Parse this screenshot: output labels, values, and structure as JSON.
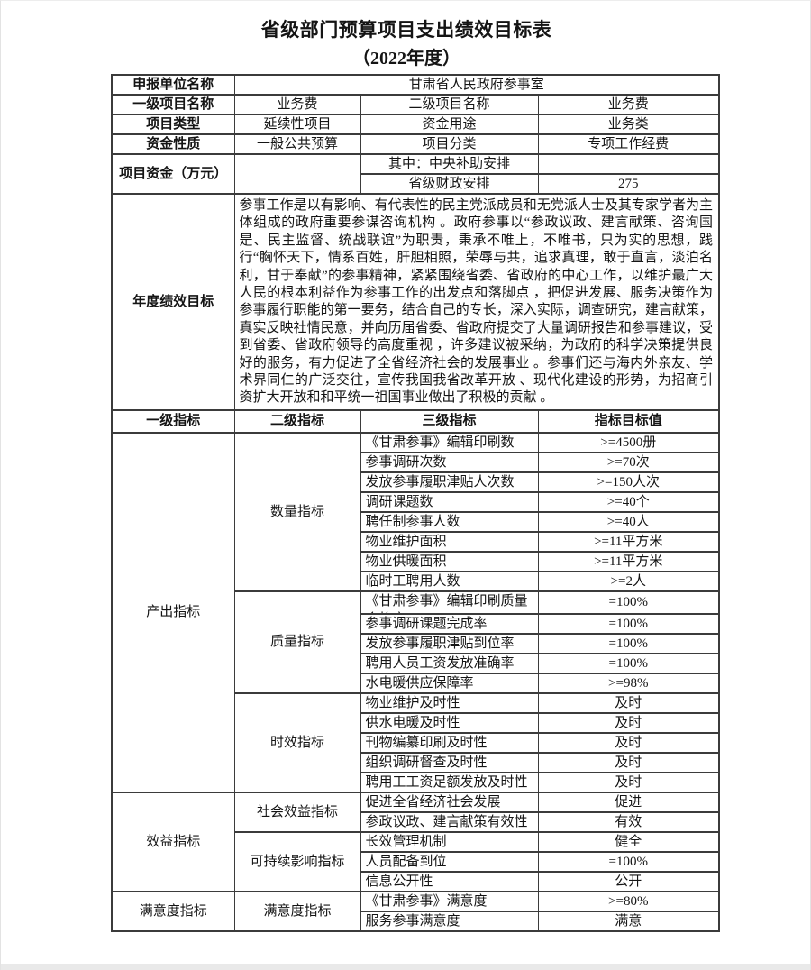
{
  "title": "省级部门预算项目支出绩效目标表",
  "subtitle": "（2022年度）",
  "top": {
    "declare_label": "申报单位名称",
    "declare_value": "甘肃省人民政府参事室",
    "level1_label": "一级项目名称",
    "level1_value": "业务费",
    "level2_label": "二级项目名称",
    "level2_value": "业务费",
    "type_label": "项目类型",
    "type_value": "延续性项目",
    "use_label": "资金用途",
    "use_value": "业务类",
    "nature_label": "资金性质",
    "nature_value": "一般公共预算",
    "class_label": "项目分类",
    "class_value": "专项工作经费",
    "funds_label": "项目资金（万元）",
    "funds_value": "",
    "central_label": "其中：中央补助安排",
    "central_value": "",
    "provincial_label": "省级财政安排",
    "provincial_value": "275"
  },
  "goal": {
    "label": "年度绩效目标",
    "text": "参事工作是以有影响、有代表性的民主党派成员和无党派人士及其专家学者为主体组成的政府重要参谋咨询机构 。政府参事以“参政议政、建言献策、咨询国是、民主监督、统战联谊”为职责，秉承不唯上，不唯书，只为实的思想，践行“胸怀天下，情系百姓，肝胆相照，荣辱与共，追求真理，敢于直言，淡泊名利，甘于奉献”的参事精神，紧紧围绕省委、省政府的中心工作，以维护最广大人民的根本利益作为参事工作的出发点和落脚点 ，把促进发展、服务决策作为参事履行职能的第一要务，结合自己的专长，深入实际，调查研究，建言献策，真实反映社情民意，并向历届省委、省政府提交了大量调研报告和参事建议，受到省委、省政府领导的高度重视 ，许多建议被采纳，为政府的科学决策提供良好的服务，有力促进了全省经济社会的发展事业 。参事们还与海内外亲友、学术界同仁的广泛交往，宣传我国我省改革开放 、现代化建设的形势，为招商引资扩大开放和和平统一祖国事业做出了积极的贡献 。"
  },
  "indicators": {
    "headers": [
      "一级指标",
      "二级指标",
      "三级指标",
      "指标目标值"
    ],
    "groups": [
      {
        "level1": "产出指标",
        "subgroups": [
          {
            "level2": "数量指标",
            "items": [
              {
                "name": "《甘肃参事》编辑印刷数",
                "target": ">=4500册"
              },
              {
                "name": "参事调研次数",
                "target": ">=70次"
              },
              {
                "name": "发放参事履职津贴人次数",
                "target": ">=150人次"
              },
              {
                "name": "调研课题数",
                "target": ">=40个"
              },
              {
                "name": "聘任制参事人数",
                "target": ">=40人"
              },
              {
                "name": "物业维护面积",
                "target": ">=11平方米"
              },
              {
                "name": "物业供暖面积",
                "target": ">=11平方米"
              },
              {
                "name": "临时工聘用人数",
                "target": ">=2人"
              }
            ]
          },
          {
            "level2": "质量指标",
            "items": [
              {
                "name": "《甘肃参事》编辑印刷质量合格率",
                "target": "=100%"
              },
              {
                "name": "参事调研课题完成率",
                "target": "=100%"
              },
              {
                "name": "发放参事履职津贴到位率",
                "target": "=100%"
              },
              {
                "name": "聘用人员工资发放准确率",
                "target": "=100%"
              },
              {
                "name": "水电暖供应保障率",
                "target": ">=98%"
              }
            ]
          },
          {
            "level2": "时效指标",
            "items": [
              {
                "name": "物业维护及时性",
                "target": "及时"
              },
              {
                "name": "供水电暖及时性",
                "target": "及时"
              },
              {
                "name": "刊物编纂印刷及时性",
                "target": "及时"
              },
              {
                "name": "组织调研督查及时性",
                "target": "及时"
              },
              {
                "name": "聘用工工资足额发放及时性",
                "target": "及时"
              }
            ]
          }
        ]
      },
      {
        "level1": "效益指标",
        "subgroups": [
          {
            "level2": "社会效益指标",
            "items": [
              {
                "name": "促进全省经济社会发展",
                "target": "促进"
              },
              {
                "name": "参政议政、建言献策有效性",
                "target": "有效"
              }
            ]
          },
          {
            "level2": "可持续影响指标",
            "items": [
              {
                "name": "长效管理机制",
                "target": "健全"
              },
              {
                "name": "人员配备到位",
                "target": "=100%"
              },
              {
                "name": "信息公开性",
                "target": "公开"
              }
            ]
          }
        ]
      },
      {
        "level1": "满意度指标",
        "subgroups": [
          {
            "level2": "满意度指标",
            "items": [
              {
                "name": "《甘肃参事》满意度",
                "target": ">=80%"
              },
              {
                "name": "服务参事满意度",
                "target": "满意"
              }
            ]
          }
        ]
      }
    ]
  }
}
